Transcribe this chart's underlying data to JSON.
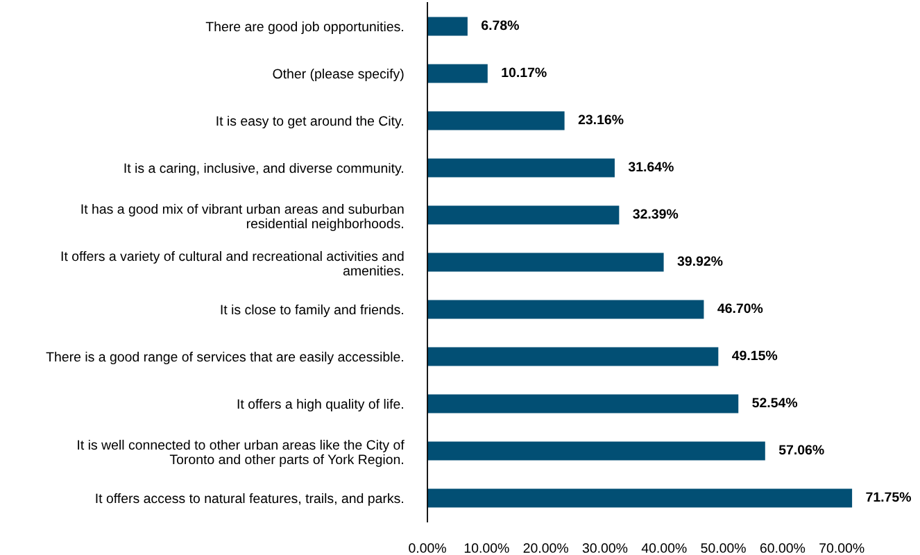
{
  "chart_data": {
    "type": "bar",
    "orientation": "horizontal",
    "categories": [
      "There are good job opportunities.",
      "Other (please specify)",
      "It is easy to get around the City.",
      "It is a caring, inclusive, and diverse community.",
      "It has a good mix of vibrant urban areas and suburban\nresidential neighborhoods.",
      "It offers a variety of cultural and recreational activities and\namenities.",
      "It is close to family and friends.",
      "There is a good range of services that are easily accessible.",
      "It offers a high quality of life.",
      "It is well connected to other urban areas like the City of\nToronto and other parts of York Region.",
      "It offers access to natural features, trails, and parks."
    ],
    "values": [
      6.78,
      10.17,
      23.16,
      31.64,
      32.39,
      39.92,
      46.7,
      49.15,
      52.54,
      57.06,
      71.75
    ],
    "value_labels": [
      "6.78%",
      "10.17%",
      "23.16%",
      "31.64%",
      "32.39%",
      "39.92%",
      "46.70%",
      "49.15%",
      "52.54%",
      "57.06%",
      "71.75%"
    ],
    "color": "#024f74",
    "xlim": [
      0,
      72.5
    ],
    "xticks": [
      {
        "value": 0,
        "label": "0.00%"
      },
      {
        "value": 10,
        "label": "10.00%"
      },
      {
        "value": 20,
        "label": "20.00%"
      },
      {
        "value": 30,
        "label": "30.00%"
      },
      {
        "value": 40,
        "label": "40.00%"
      },
      {
        "value": 50,
        "label": "50.00%"
      },
      {
        "value": 60,
        "label": "60.00%"
      },
      {
        "value": 70,
        "label": "70.00%"
      }
    ],
    "grid": false
  }
}
